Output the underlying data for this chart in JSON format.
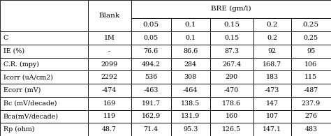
{
  "row_labels": [
    "C",
    "IE (%)",
    "C.R. (mpy)",
    "Icorr (uA/cm2)",
    "Ecorr (mV)",
    "Bc (mV/decade)",
    "Bca(mV/decade)",
    "Rp (ohm)"
  ],
  "blank_col": [
    "1M",
    "-",
    "2099",
    "2292",
    "-474",
    "169",
    "119",
    "48.7"
  ],
  "bre_cols": [
    [
      "0.05",
      "76.6",
      "494.2",
      "536",
      "-463",
      "191.7",
      "162.9",
      "71.4"
    ],
    [
      "0.1",
      "86.6",
      "284",
      "308",
      "-464",
      "138.5",
      "131.9",
      "95.3"
    ],
    [
      "0.15",
      "87.3",
      "267.4",
      "290",
      "-470",
      "178.6",
      "160",
      "126.5"
    ],
    [
      "0.2",
      "92",
      "168.7",
      "183",
      "-473",
      "147",
      "107",
      "147.1"
    ],
    [
      "0.25",
      "95",
      "106",
      "115",
      "-487",
      "237.9",
      "276",
      "483"
    ]
  ],
  "bre_subheaders": [
    "0.05",
    "0.1",
    "0.15",
    "0.2",
    "0.25"
  ],
  "bg_color": "#ffffff",
  "text_color": "#000000",
  "border_color": "#000000",
  "header_blank": "Blank",
  "header_bre": "BRE (gm/l)",
  "fontsize": 6.8,
  "header_fontsize": 7.5
}
